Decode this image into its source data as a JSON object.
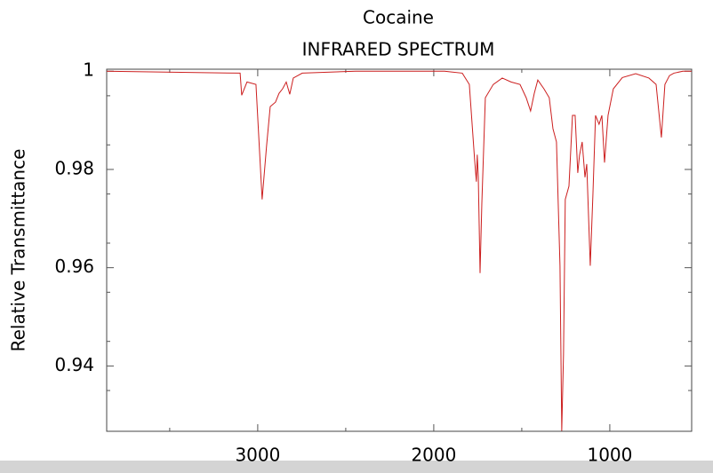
{
  "chart_data": {
    "type": "line",
    "title": "Cocaine",
    "subtitle": "INFRARED SPECTRUM",
    "y_label": "Relative Transmittance",
    "x": [
      3858,
      3100,
      3091,
      3061,
      3010,
      2975,
      2950,
      2929,
      2899,
      2879,
      2859,
      2838,
      2818,
      2798,
      2747,
      2444,
      1939,
      1838,
      1798,
      1768,
      1758,
      1753,
      1747,
      1737,
      1727,
      1707,
      1662,
      1611,
      1561,
      1510,
      1475,
      1450,
      1429,
      1409,
      1374,
      1344,
      1323,
      1303,
      1283,
      1273,
      1263,
      1253,
      1232,
      1212,
      1197,
      1182,
      1172,
      1157,
      1141,
      1131,
      1111,
      1096,
      1081,
      1061,
      1045,
      1030,
      1010,
      980,
      929,
      853,
      778,
      737,
      707,
      687,
      661,
      636,
      585,
      535
    ],
    "series": [
      {
        "color": "#cc1f1f",
        "values": [
          1.0,
          0.9996,
          0.9951,
          0.9978,
          0.9973,
          0.9739,
          0.9847,
          0.9928,
          0.9937,
          0.9955,
          0.9964,
          0.9978,
          0.9953,
          0.9986,
          0.9996,
          1.0,
          1.0,
          0.9996,
          0.9973,
          0.982,
          0.9775,
          0.983,
          0.9784,
          0.9589,
          0.973,
          0.9946,
          0.9973,
          0.9986,
          0.9978,
          0.9973,
          0.9946,
          0.9919,
          0.9955,
          0.9982,
          0.9964,
          0.9946,
          0.9883,
          0.9856,
          0.9604,
          0.9268,
          0.9423,
          0.9739,
          0.9766,
          0.991,
          0.991,
          0.9793,
          0.9829,
          0.9856,
          0.9784,
          0.9811,
          0.9604,
          0.9748,
          0.991,
          0.9892,
          0.991,
          0.9814,
          0.991,
          0.9964,
          0.9987,
          0.9995,
          0.9986,
          0.9973,
          0.9865,
          0.9973,
          0.9991,
          0.9996,
          1.0,
          1.0
        ]
      }
    ],
    "xlim": [
      3858,
      535
    ],
    "xticks": [
      3000,
      2000,
      1000
    ],
    "xminor": [
      3500,
      2500,
      1500
    ],
    "ylim": [
      0.9267,
      1.0004
    ],
    "yticks": [
      1,
      0.98,
      0.96,
      0.94
    ],
    "yminor": [
      0.995,
      0.985,
      0.975,
      0.965,
      0.955,
      0.945,
      0.935
    ]
  }
}
